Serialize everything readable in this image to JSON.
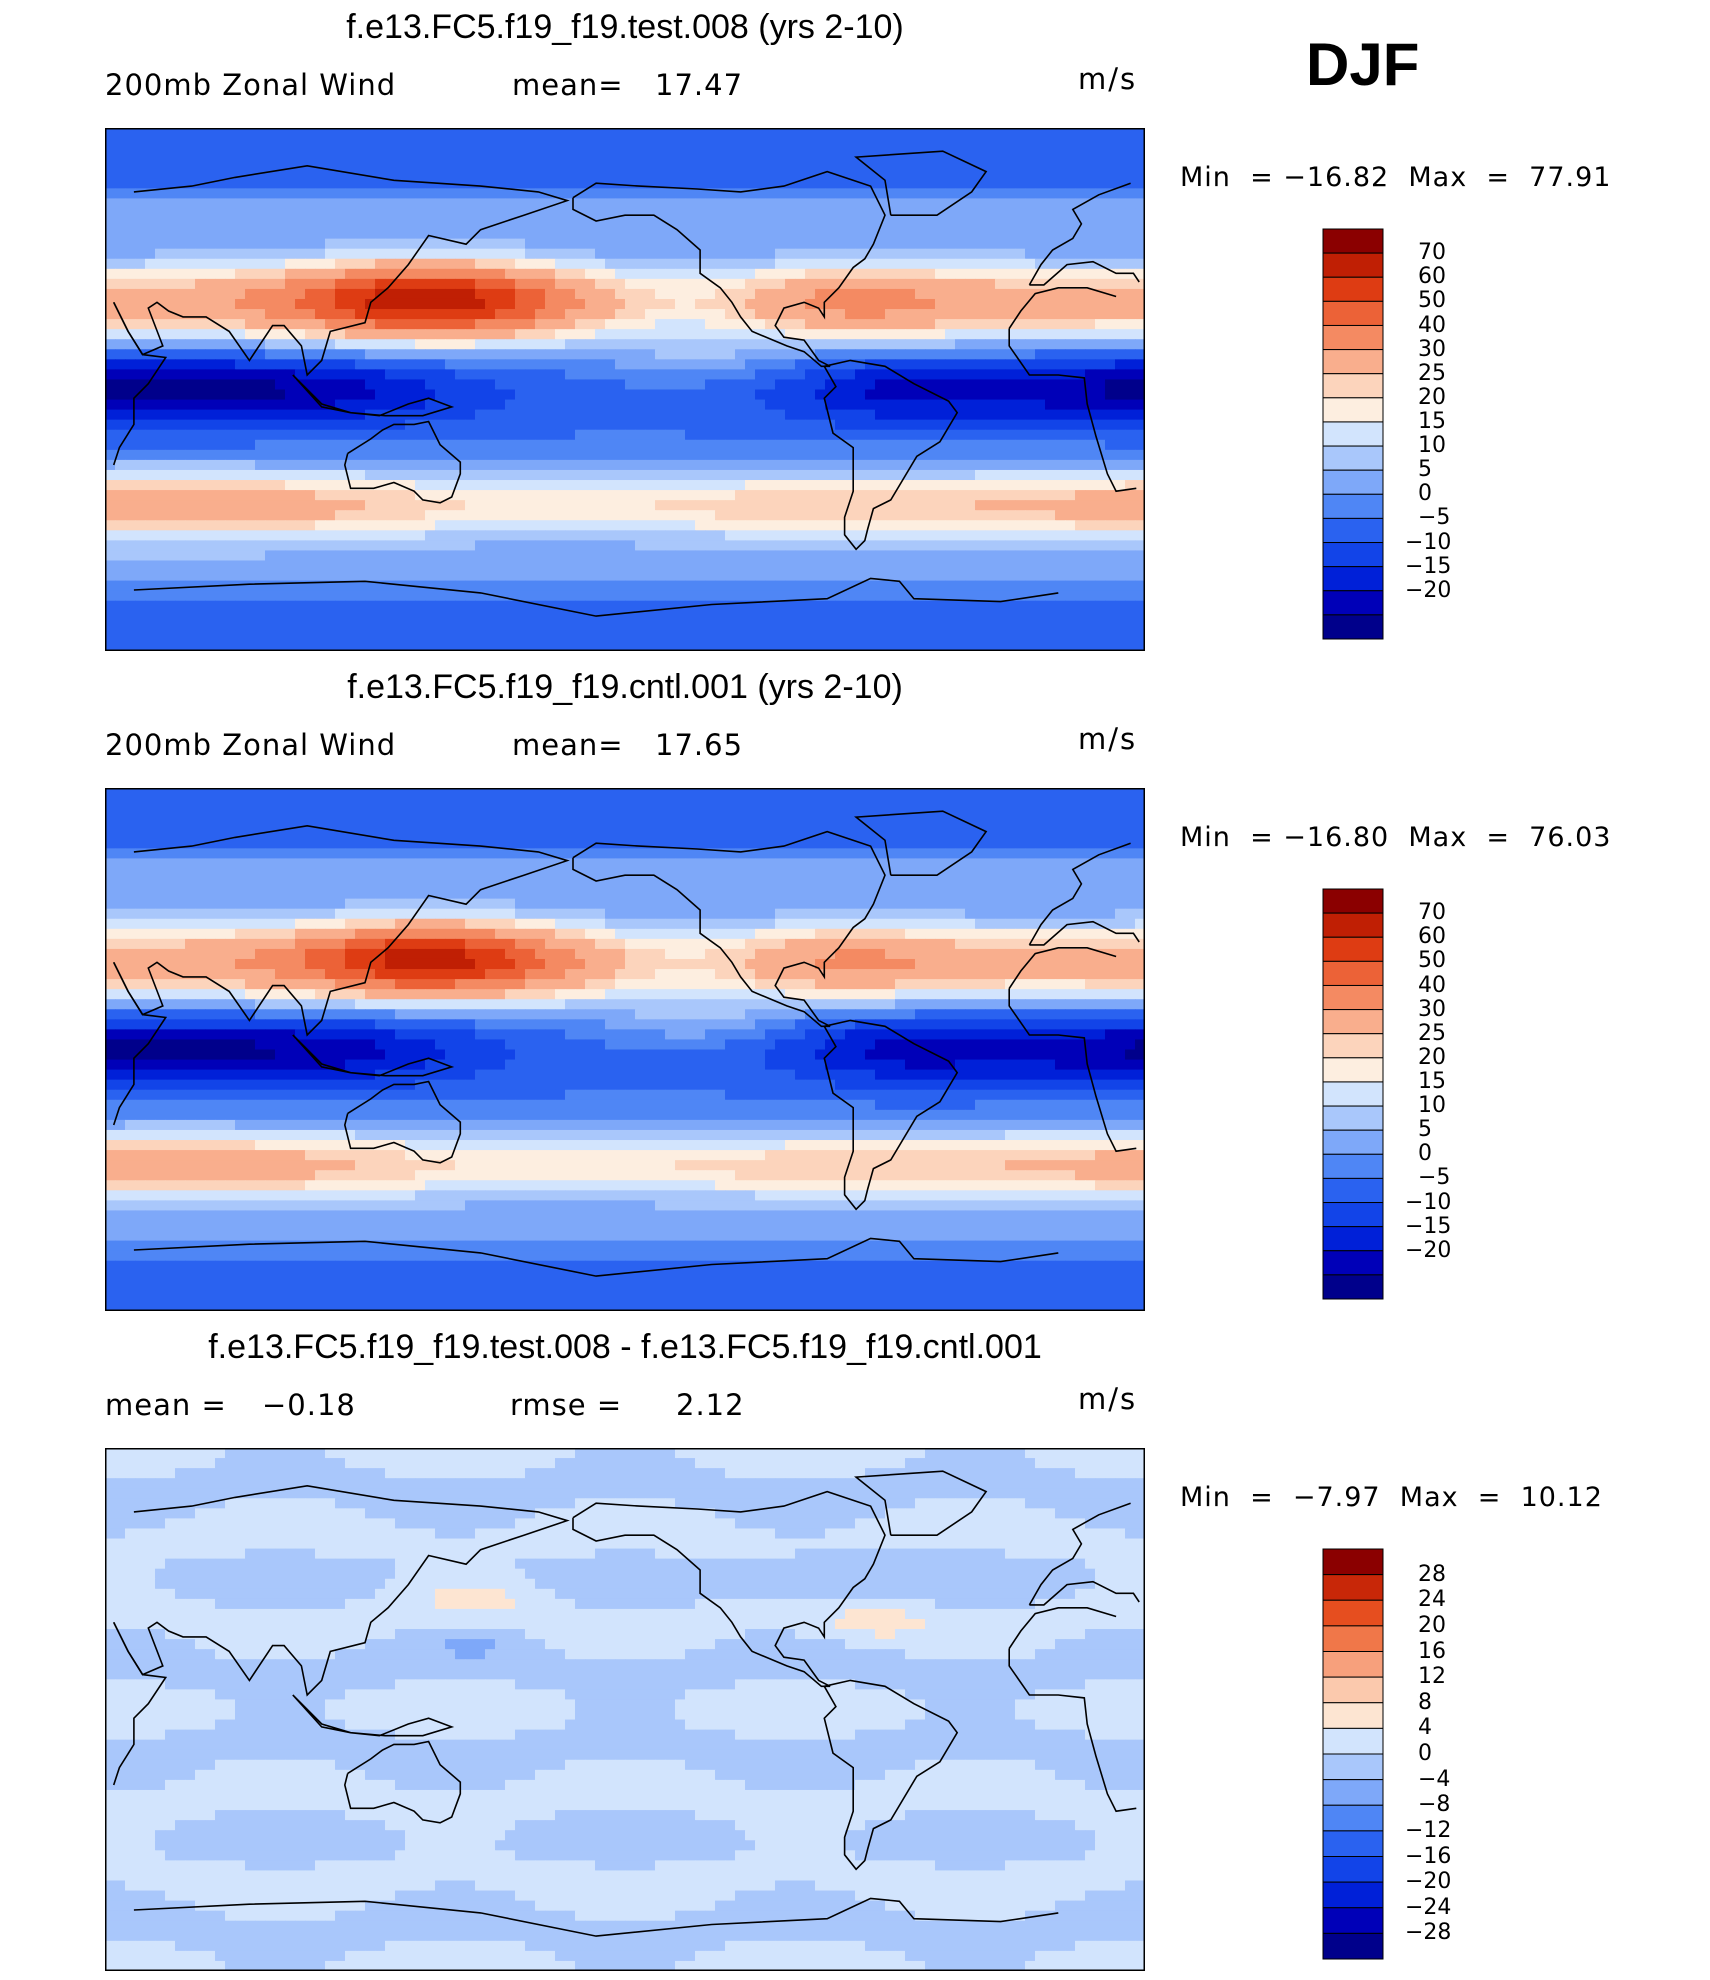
{
  "season": "DJF",
  "colors": {
    "levels_main": [
      "#00008b",
      "#0000b8",
      "#0020d8",
      "#1244e8",
      "#2a62f0",
      "#4f86f5",
      "#7ea8f9",
      "#a9c7fb",
      "#d2e4fd",
      "#fdeee0",
      "#fcd4bc",
      "#f9ae8d",
      "#f48a62",
      "#ec6237",
      "#de3c13",
      "#c01f04",
      "#8b0000"
    ],
    "levels_diff": [
      "#00008b",
      "#0000b8",
      "#0020d8",
      "#1244e8",
      "#2a62f0",
      "#4f86f5",
      "#7ea8f9",
      "#a9c7fb",
      "#d2e4fd",
      "#fde5d2",
      "#fbc9ad",
      "#f7a07c",
      "#f07749",
      "#e64e1f",
      "#c82708",
      "#8b0000"
    ],
    "coast": "#000000"
  },
  "chart_data": [
    {
      "type": "heatmap",
      "title": "f.e13.FC5.f19_f19.test.008 (yrs 2-10)",
      "variable": "200mb  Zonal  Wind",
      "mean_label": "mean=",
      "mean": "17.47",
      "units": "m/s",
      "min_label": "Min  =",
      "min": "−16.82",
      "max_label": "Max  =",
      "max": "77.91",
      "colorbar_ticks": [
        "70",
        "60",
        "50",
        "40",
        "30",
        "25",
        "20",
        "15",
        "10",
        "5",
        "0",
        "−5",
        "−10",
        "−15",
        "−20"
      ],
      "colorbar_bounds": [
        -20,
        -15,
        -10,
        -5,
        0,
        5,
        10,
        15,
        20,
        25,
        30,
        40,
        50,
        60,
        70
      ],
      "lon_range": [
        0,
        360
      ],
      "lat_range": [
        -90,
        90
      ],
      "field_scale": 1.0
    },
    {
      "type": "heatmap",
      "title": "f.e13.FC5.f19_f19.cntl.001 (yrs 2-10)",
      "variable": "200mb  Zonal  Wind",
      "mean_label": "mean=",
      "mean": "17.65",
      "units": "m/s",
      "min_label": "Min  =",
      "min": "−16.80",
      "max_label": "Max  =",
      "max": "76.03",
      "colorbar_ticks": [
        "70",
        "60",
        "50",
        "40",
        "30",
        "25",
        "20",
        "15",
        "10",
        "5",
        "0",
        "−5",
        "−10",
        "−15",
        "−20"
      ],
      "colorbar_bounds": [
        -20,
        -15,
        -10,
        -5,
        0,
        5,
        10,
        15,
        20,
        25,
        30,
        40,
        50,
        60,
        70
      ],
      "lon_range": [
        0,
        360
      ],
      "lat_range": [
        -90,
        90
      ],
      "field_scale": 0.98
    },
    {
      "type": "heatmap",
      "title": "f.e13.FC5.f19_f19.test.008 - f.e13.FC5.f19_f19.cntl.001",
      "mean_label": "mean  =",
      "mean": "−0.18",
      "rmse_label": "rmse  =",
      "rmse": "2.12",
      "units": "m/s",
      "min_label": "Min  =",
      "min": "−7.97",
      "max_label": "Max  =",
      "max": "10.12",
      "colorbar_ticks": [
        "28",
        "24",
        "20",
        "16",
        "12",
        "8",
        "4",
        "0",
        "−4",
        "−8",
        "−12",
        "−16",
        "−20",
        "−24",
        "−28"
      ],
      "colorbar_bounds": [
        -28,
        -24,
        -20,
        -16,
        -12,
        -8,
        -4,
        0,
        4,
        8,
        12,
        16,
        20,
        24,
        28
      ],
      "lon_range": [
        0,
        360
      ],
      "lat_range": [
        -90,
        90
      ]
    }
  ]
}
